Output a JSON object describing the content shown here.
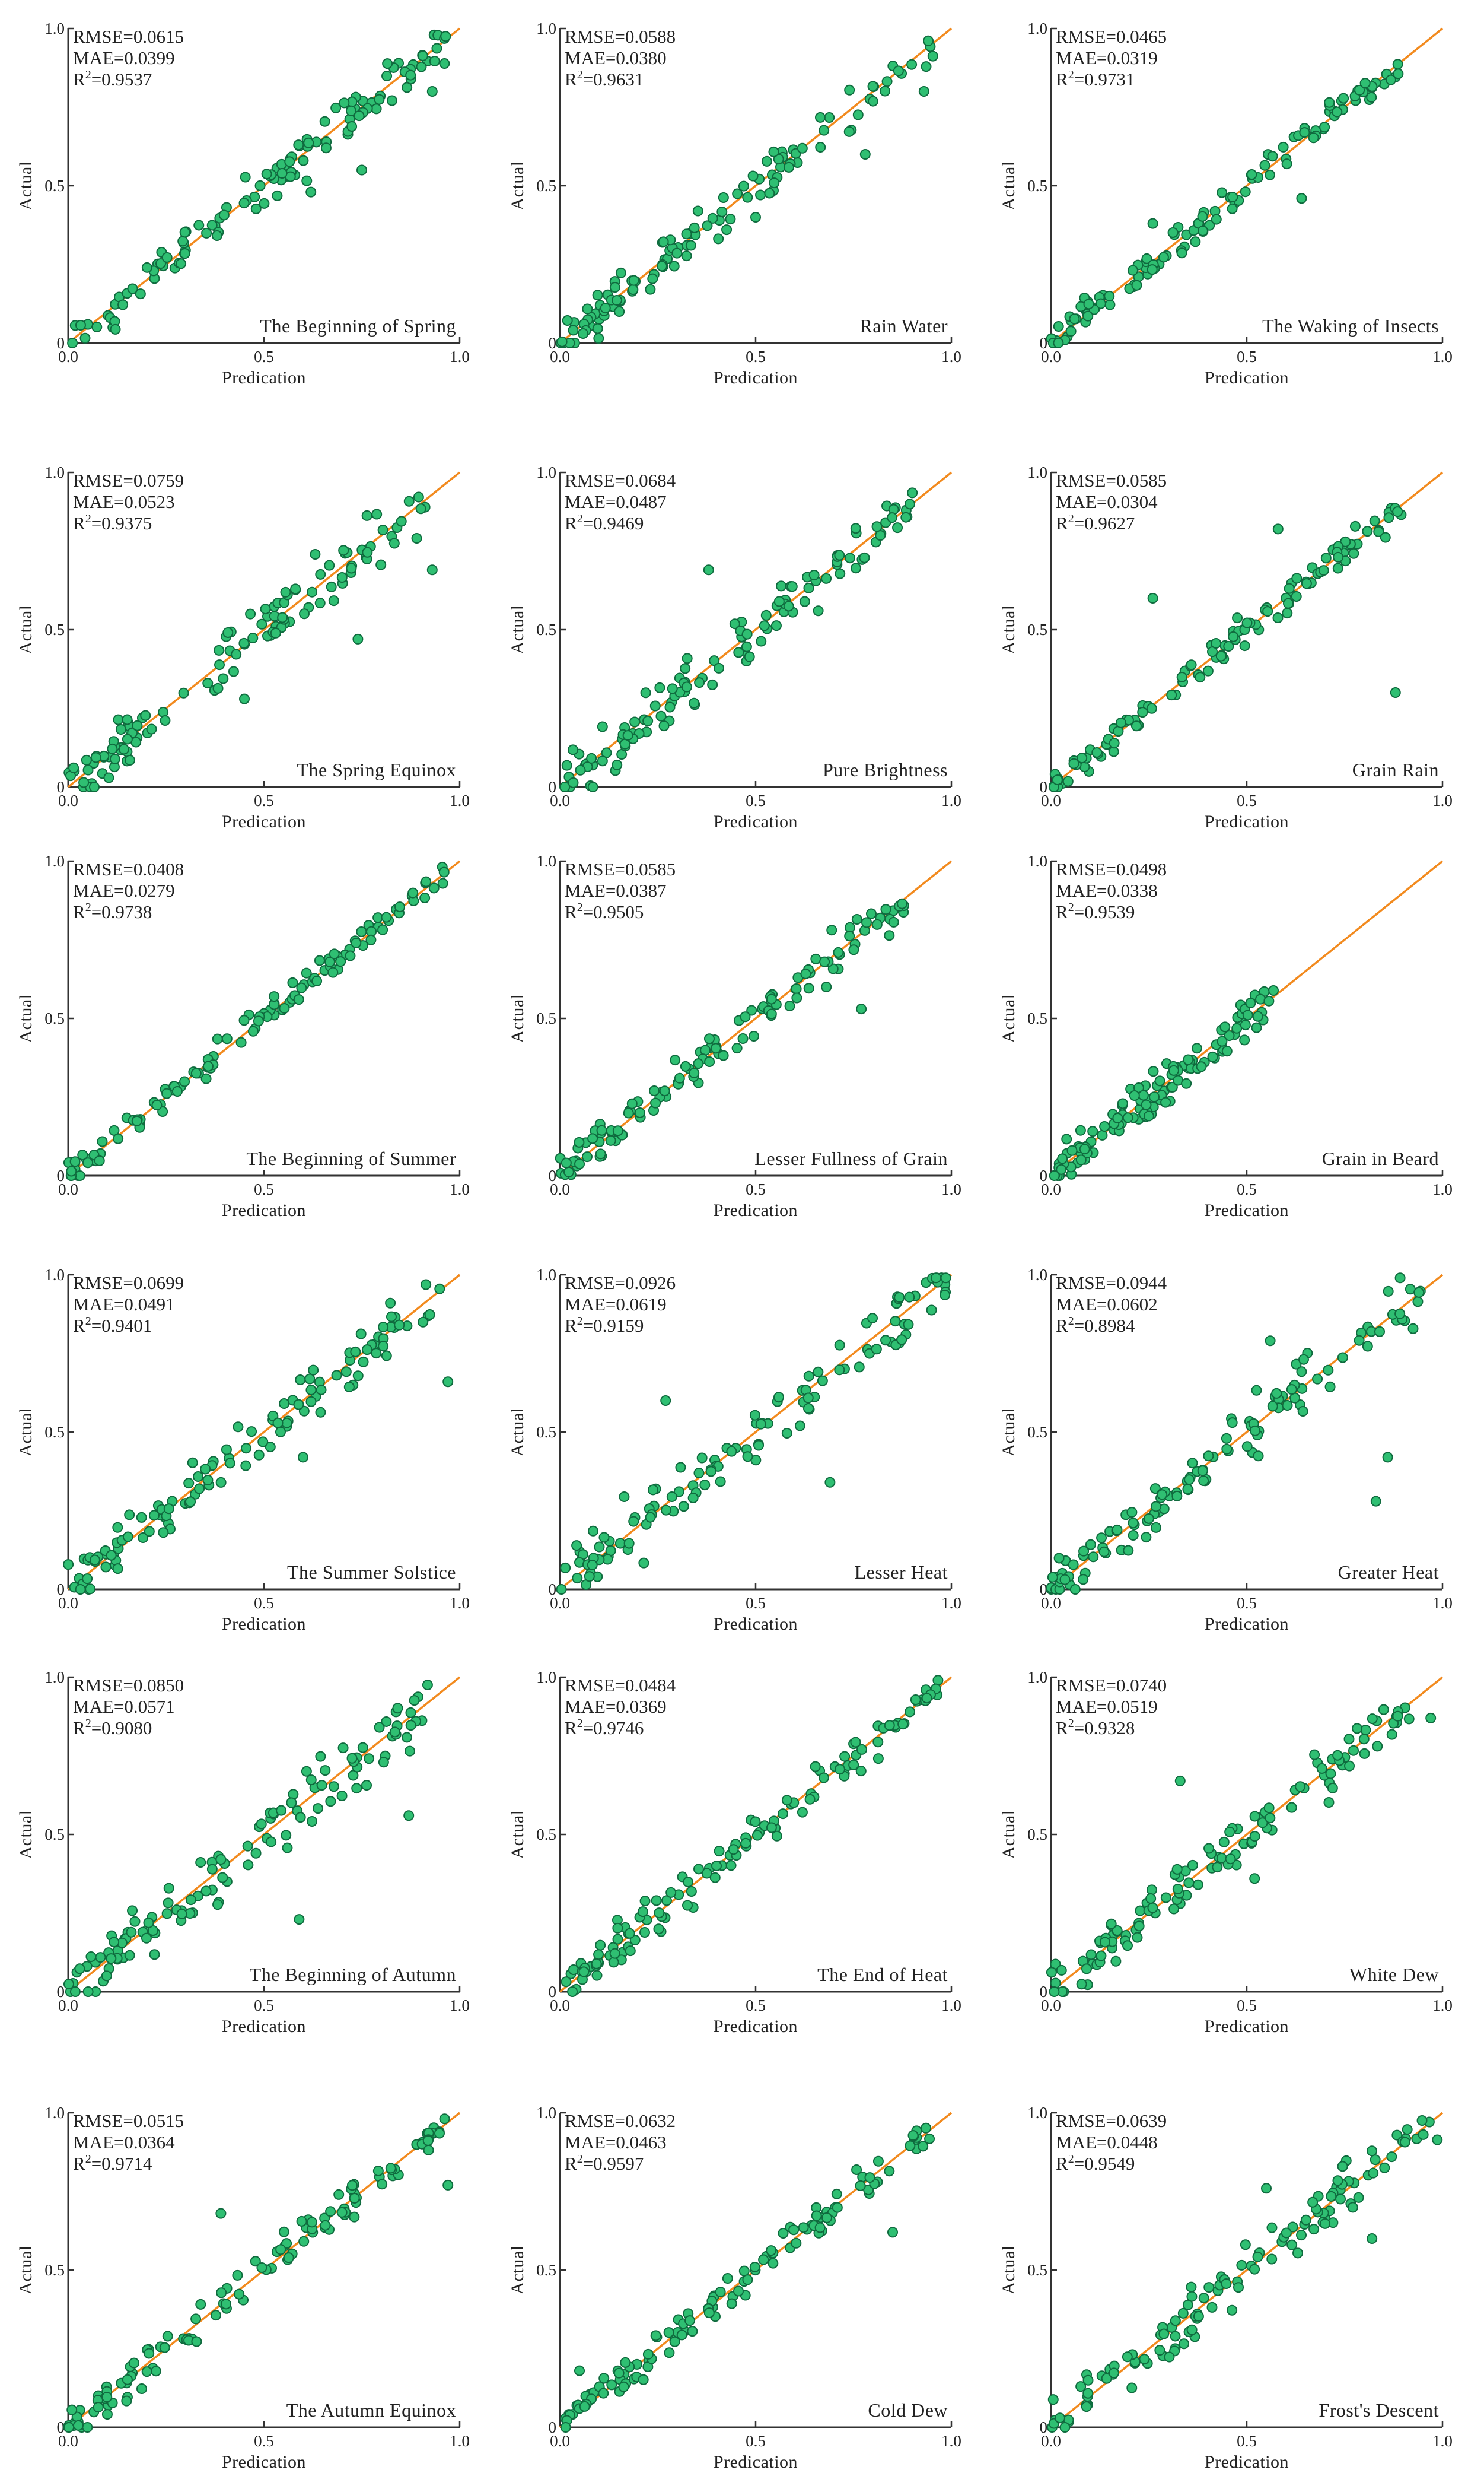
{
  "axes": {
    "xlabel": "Predication",
    "ylabel": "Actual",
    "xticks": [
      "0.0",
      "0.5",
      "1.0"
    ],
    "yticks": [
      "0",
      "0.5",
      "1.0"
    ],
    "x_range": [
      0,
      1
    ],
    "y_range": [
      0,
      1
    ]
  },
  "colors": {
    "points": "#2fbf72",
    "point_edge": "#0f6b3e",
    "diagonal": "#f28a1e"
  },
  "chart_data": [
    {
      "type": "scatter",
      "title": "The Beginning of Spring",
      "rmse": "RMSE=0.0615",
      "mae": "MAE=0.0399",
      "r2": "0.9537",
      "r2_label": "R",
      "seed": 11,
      "xmax": 0.97,
      "noise": 0.06,
      "outliers": [
        [
          0.93,
          0.8
        ],
        [
          0.75,
          0.55
        ],
        [
          0.62,
          0.48
        ]
      ]
    },
    {
      "type": "scatter",
      "title": "Rain Water",
      "rmse": "RMSE=0.0588",
      "mae": "MAE=0.0380",
      "r2": "0.9631",
      "r2_label": "R",
      "seed": 12,
      "xmax": 0.97,
      "noise": 0.055,
      "outliers": [
        [
          0.93,
          0.8
        ],
        [
          0.78,
          0.6
        ],
        [
          0.5,
          0.4
        ]
      ]
    },
    {
      "type": "scatter",
      "title": "The Waking of Insects",
      "rmse": "RMSE=0.0465",
      "mae": "MAE=0.0319",
      "r2": "0.9731",
      "r2_label": "R",
      "seed": 13,
      "xmax": 0.9,
      "noise": 0.045,
      "outliers": [
        [
          0.64,
          0.46
        ],
        [
          0.26,
          0.38
        ]
      ]
    },
    {
      "type": "scatter",
      "title": "The Spring Equinox",
      "rmse": "RMSE=0.0759",
      "mae": "MAE=0.0523",
      "r2": "0.9375",
      "r2_label": "R",
      "seed": 14,
      "xmax": 0.93,
      "noise": 0.075,
      "outliers": [
        [
          0.74,
          0.47
        ],
        [
          0.45,
          0.28
        ],
        [
          0.93,
          0.69
        ]
      ]
    },
    {
      "type": "scatter",
      "title": "Pure Brightness",
      "rmse": "RMSE=0.0684",
      "mae": "MAE=0.0487",
      "r2": "0.9469",
      "r2_label": "R",
      "seed": 15,
      "xmax": 0.92,
      "noise": 0.065,
      "outliers": [
        [
          0.38,
          0.69
        ],
        [
          0.66,
          0.56
        ]
      ]
    },
    {
      "type": "scatter",
      "title": "Grain Rain",
      "rmse": "RMSE=0.0585",
      "mae": "MAE=0.0304",
      "r2": "0.9627",
      "r2_label": "R",
      "seed": 16,
      "xmax": 0.9,
      "noise": 0.04,
      "outliers": [
        [
          0.88,
          0.3
        ],
        [
          0.58,
          0.82
        ],
        [
          0.26,
          0.6
        ]
      ]
    },
    {
      "type": "scatter",
      "title": "The Beginning of Summer",
      "rmse": "RMSE=0.0408",
      "mae": "MAE=0.0279",
      "r2": "0.9738",
      "r2_label": "R",
      "seed": 17,
      "xmax": 0.97,
      "noise": 0.04,
      "outliers": []
    },
    {
      "type": "scatter",
      "title": "Lesser Fullness of Grain",
      "rmse": "RMSE=0.0585",
      "mae": "MAE=0.0387",
      "r2": "0.9505",
      "r2_label": "R",
      "seed": 18,
      "xmax": 0.89,
      "noise": 0.055,
      "outliers": [
        [
          0.77,
          0.53
        ]
      ]
    },
    {
      "type": "scatter",
      "title": "Grain in Beard",
      "rmse": "RMSE=0.0498",
      "mae": "MAE=0.0338",
      "r2": "0.9539",
      "r2_label": "R",
      "seed": 19,
      "xmax": 0.57,
      "noise": 0.05,
      "outliers": []
    },
    {
      "type": "scatter",
      "title": "The Summer Solstice",
      "rmse": "RMSE=0.0699",
      "mae": "MAE=0.0491",
      "r2": "0.9401",
      "r2_label": "R",
      "seed": 20,
      "xmax": 0.95,
      "noise": 0.07,
      "outliers": [
        [
          0.97,
          0.66
        ],
        [
          0.6,
          0.42
        ]
      ]
    },
    {
      "type": "scatter",
      "title": "Lesser Heat",
      "rmse": "RMSE=0.0926",
      "mae": "MAE=0.0619",
      "r2": "0.9159",
      "r2_label": "R",
      "seed": 21,
      "xmax": 0.99,
      "noise": 0.085,
      "outliers": [
        [
          0.69,
          0.34
        ],
        [
          0.27,
          0.6
        ]
      ]
    },
    {
      "type": "scatter",
      "title": "Greater Heat",
      "rmse": "RMSE=0.0944",
      "mae": "MAE=0.0602",
      "r2": "0.8984",
      "r2_label": "R",
      "seed": 22,
      "xmax": 0.96,
      "noise": 0.085,
      "outliers": [
        [
          0.83,
          0.28
        ],
        [
          0.86,
          0.42
        ],
        [
          0.56,
          0.79
        ]
      ]
    },
    {
      "type": "scatter",
      "title": "The Beginning of Autumn",
      "rmse": "RMSE=0.0850",
      "mae": "MAE=0.0571",
      "r2": "0.9080",
      "r2_label": "R",
      "seed": 23,
      "xmax": 0.93,
      "noise": 0.08,
      "outliers": [
        [
          0.59,
          0.23
        ],
        [
          0.87,
          0.56
        ]
      ]
    },
    {
      "type": "scatter",
      "title": "The End of Heat",
      "rmse": "RMSE=0.0484",
      "mae": "MAE=0.0369",
      "r2": "0.9746",
      "r2_label": "R",
      "seed": 24,
      "xmax": 0.97,
      "noise": 0.05,
      "outliers": [
        [
          0.18,
          0.13
        ],
        [
          0.4,
          0.4
        ]
      ]
    },
    {
      "type": "scatter",
      "title": "White Dew",
      "rmse": "RMSE=0.0740",
      "mae": "MAE=0.0519",
      "r2": "0.9328",
      "r2_label": "R",
      "seed": 25,
      "xmax": 0.92,
      "noise": 0.07,
      "outliers": [
        [
          0.33,
          0.67
        ],
        [
          0.52,
          0.36
        ],
        [
          0.97,
          0.87
        ]
      ]
    },
    {
      "type": "scatter",
      "title": "The Autumn Equinox",
      "rmse": "RMSE=0.0515",
      "mae": "MAE=0.0364",
      "r2": "0.9714",
      "r2_label": "R",
      "seed": 26,
      "xmax": 0.97,
      "noise": 0.05,
      "outliers": [
        [
          0.97,
          0.77
        ],
        [
          0.39,
          0.68
        ]
      ]
    },
    {
      "type": "scatter",
      "title": "Cold Dew",
      "rmse": "RMSE=0.0632",
      "mae": "MAE=0.0463",
      "r2": "0.9597",
      "r2_label": "R",
      "seed": 27,
      "xmax": 0.97,
      "noise": 0.045,
      "outliers": [
        [
          0.85,
          0.62
        ],
        [
          0.05,
          0.18
        ]
      ]
    },
    {
      "type": "scatter",
      "title": "Frost's Descent",
      "rmse": "RMSE=0.0639",
      "mae": "MAE=0.0448",
      "r2": "0.9549",
      "r2_label": "R",
      "seed": 28,
      "xmax": 0.99,
      "noise": 0.06,
      "outliers": [
        [
          0.55,
          0.76
        ],
        [
          0.82,
          0.6
        ],
        [
          0.36,
          0.31
        ]
      ]
    }
  ]
}
